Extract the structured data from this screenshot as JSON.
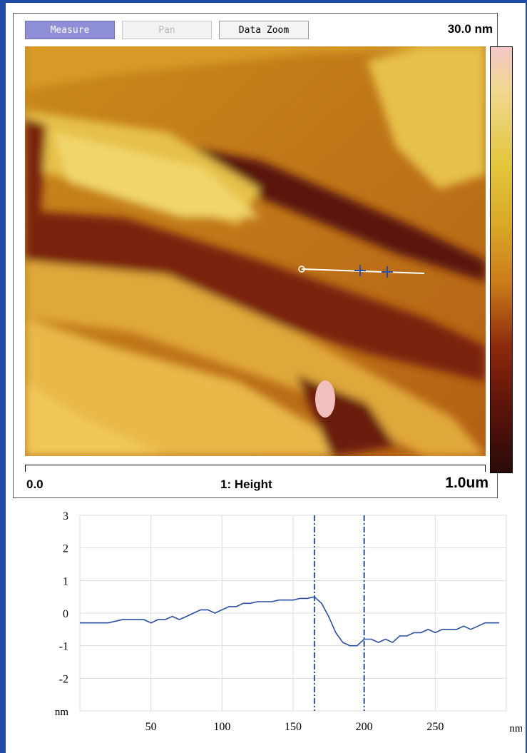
{
  "toolbar": {
    "measure_label": "Measure",
    "pan_label": "Pan",
    "data_zoom_label": "Data Zoom"
  },
  "image": {
    "scale_max": "30.0 nm",
    "axis_min": "0.0",
    "channel_label": "1: Height",
    "axis_max": "1.0um"
  },
  "colors": {
    "frame": "#1f4aa8",
    "measure_active": "#8f8fd8",
    "profile_line": "#2a4fa0",
    "cursor_line": "#2a4fa0",
    "section_line": "#ffffff"
  },
  "chart_data": {
    "type": "line",
    "xlabel": "nm",
    "ylabel": "nm",
    "xlim": [
      0,
      300
    ],
    "ylim": [
      -3,
      3
    ],
    "xticks": [
      50,
      100,
      150,
      200,
      250
    ],
    "yticks": [
      3,
      2,
      1,
      0,
      -1,
      -2
    ],
    "grid": true,
    "cursors": [
      165,
      200
    ],
    "x": [
      0,
      10,
      20,
      30,
      40,
      45,
      50,
      55,
      60,
      65,
      70,
      75,
      80,
      85,
      90,
      95,
      100,
      105,
      110,
      115,
      120,
      125,
      130,
      135,
      140,
      145,
      150,
      155,
      160,
      165,
      170,
      175,
      180,
      185,
      190,
      195,
      200,
      205,
      210,
      215,
      220,
      225,
      230,
      235,
      240,
      245,
      250,
      255,
      260,
      265,
      270,
      275,
      280,
      285,
      290,
      295
    ],
    "y": [
      -0.3,
      -0.3,
      -0.3,
      -0.2,
      -0.2,
      -0.2,
      -0.3,
      -0.2,
      -0.2,
      -0.1,
      -0.2,
      -0.1,
      0.0,
      0.1,
      0.1,
      0.0,
      0.1,
      0.2,
      0.2,
      0.3,
      0.3,
      0.35,
      0.35,
      0.35,
      0.4,
      0.4,
      0.4,
      0.45,
      0.45,
      0.5,
      0.3,
      -0.1,
      -0.6,
      -0.9,
      -1.0,
      -1.0,
      -0.8,
      -0.8,
      -0.9,
      -0.8,
      -0.9,
      -0.7,
      -0.7,
      -0.6,
      -0.6,
      -0.5,
      -0.6,
      -0.5,
      -0.5,
      -0.5,
      -0.4,
      -0.5,
      -0.4,
      -0.3,
      -0.3,
      -0.3
    ]
  }
}
